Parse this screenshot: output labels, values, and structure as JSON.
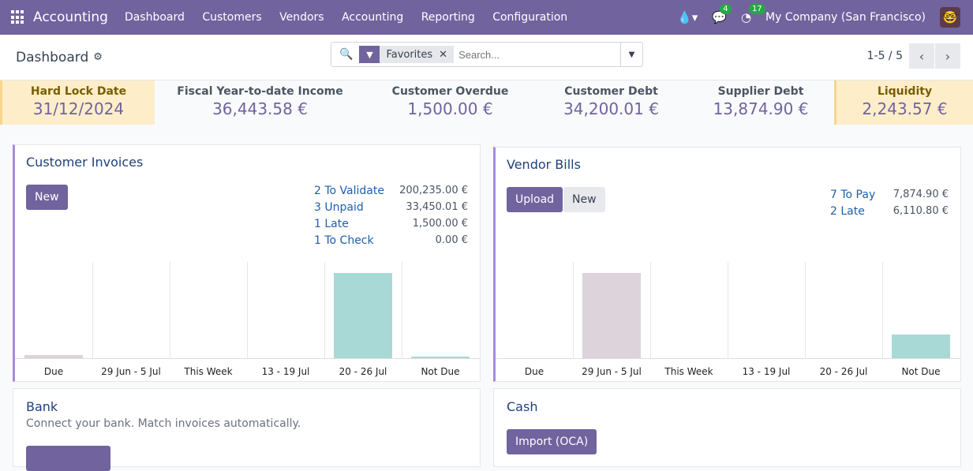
{
  "nav": {
    "app": "Accounting",
    "menu": [
      "Dashboard",
      "Customers",
      "Vendors",
      "Accounting",
      "Reporting",
      "Configuration"
    ],
    "messages_count": "4",
    "activities_count": "17",
    "company": "My Company (San Francisco)"
  },
  "control": {
    "title": "Dashboard",
    "facet": "Favorites",
    "search_placeholder": "Search...",
    "pager": "1-5 / 5"
  },
  "kpis": [
    {
      "label": "Hard Lock Date",
      "value": "31/12/2024"
    },
    {
      "label": "Fiscal Year-to-date Income",
      "value": "36,443.58 €"
    },
    {
      "label": "Customer Overdue",
      "value": "1,500.00 €"
    },
    {
      "label": "Customer Debt",
      "value": "34,200.01 €"
    },
    {
      "label": "Supplier Debt",
      "value": "13,874.90 €"
    },
    {
      "label": "Liquidity",
      "value": "2,243.57 €"
    }
  ],
  "customer_invoices": {
    "title": "Customer Invoices",
    "new": "New",
    "stats": [
      {
        "label": "2 To Validate",
        "value": "200,235.00 €"
      },
      {
        "label": "3 Unpaid",
        "value": "33,450.01 €"
      },
      {
        "label": "1 Late",
        "value": "1,500.00 €"
      },
      {
        "label": "1 To Check",
        "value": "0.00 €"
      }
    ],
    "graph": {
      "categories": [
        "Due",
        "29 Jun - 5 Jul",
        "This Week",
        "13 - 19 Jul",
        "20 - 26 Jul",
        "Not Due"
      ],
      "levels": [
        0.04,
        0,
        0,
        0,
        1,
        0.02
      ],
      "colors": [
        "#ddd3da",
        "#ddd3da",
        "#a8d9d6",
        "#a8d9d6",
        "#a8d9d6",
        "#a8d9d6"
      ]
    }
  },
  "vendor_bills": {
    "title": "Vendor Bills",
    "upload": "Upload",
    "new": "New",
    "stats": [
      {
        "label": "7 To Pay",
        "value": "7,874.90 €"
      },
      {
        "label": "2 Late",
        "value": "6,110.80 €"
      }
    ],
    "graph": {
      "categories": [
        "Due",
        "29 Jun - 5 Jul",
        "This Week",
        "13 - 19 Jul",
        "20 - 26 Jul",
        "Not Due"
      ],
      "levels": [
        0,
        1,
        0,
        0,
        0,
        0.28
      ],
      "colors": [
        "#ddd3da",
        "#ddd3da",
        "#a8d9d6",
        "#a8d9d6",
        "#a8d9d6",
        "#a8d9d6"
      ]
    }
  },
  "bank": {
    "title": "Bank",
    "description": "Connect your bank. Match invoices automatically."
  },
  "cash": {
    "title": "Cash",
    "import": "Import (OCA)"
  }
}
